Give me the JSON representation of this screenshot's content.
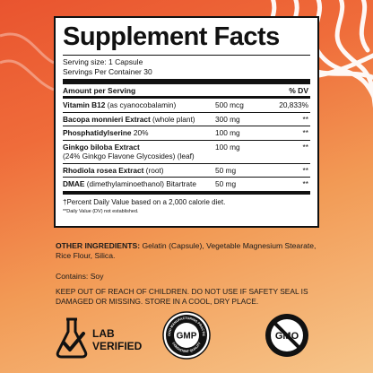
{
  "facts": {
    "title": "Supplement Facts",
    "serving_size": "Serving size: 1 Capsule",
    "servings_per_container": "Servings Per Container 30",
    "amount_header": "Amount per Serving",
    "dv_header": "% DV",
    "rows": [
      {
        "name_bold": "Vitamin B12",
        "name_rest": " (as cyanocobalamin)",
        "amount": "500 mcg",
        "dv": "20,833%"
      },
      {
        "name_bold": "Bacopa monnieri Extract",
        "name_rest": " (whole plant)",
        "amount": "300 mg",
        "dv": "**"
      },
      {
        "name_bold": "Phosphatidylserine",
        "name_rest": " 20%",
        "amount": "100 mg",
        "dv": "**"
      },
      {
        "name_bold": "Ginkgo biloba Extract",
        "name_rest": "(24% Ginkgo Flavone Glycosides) (leaf)",
        "amount": "100 mg",
        "dv": "**"
      },
      {
        "name_bold": "Rhodiola rosea Extract",
        "name_rest": " (root)",
        "amount": "50 mg",
        "dv": "**"
      },
      {
        "name_bold": "DMAE",
        "name_rest": " (dimethylaminoethanol) Bitartrate",
        "amount": "50 mg",
        "dv": "**"
      }
    ],
    "footnote_1": "†Percent Daily Value based on a 2,000 calorie diet.",
    "footnote_2": "**Daily Value (DV) not established."
  },
  "ingredients_label": "OTHER INGREDIENTS:",
  "ingredients_text": " Gelatin (Capsule), Vegetable Magnesium Stearate, Rice Flour, Silica.",
  "contains": "Contains: Soy",
  "warning": "KEEP OUT OF REACH OF CHILDREN. DO NOT USE IF SAFETY SEAL IS DAMAGED OR MISSING. STORE IN A COOL, DRY PLACE.",
  "badges": {
    "lab_line1": "LAB",
    "lab_line2": "VERIFIED",
    "gmp_center": "GMP",
    "gmp_ring": "GOOD MANUFACTURING PRACTICE",
    "gmp_ring_bottom": "CONSISTENT QUALITY",
    "gmo_text": "GMO"
  },
  "colors": {
    "bg_top": "#e9542f",
    "bg_bottom": "#f6c58a",
    "ink": "#111111"
  }
}
